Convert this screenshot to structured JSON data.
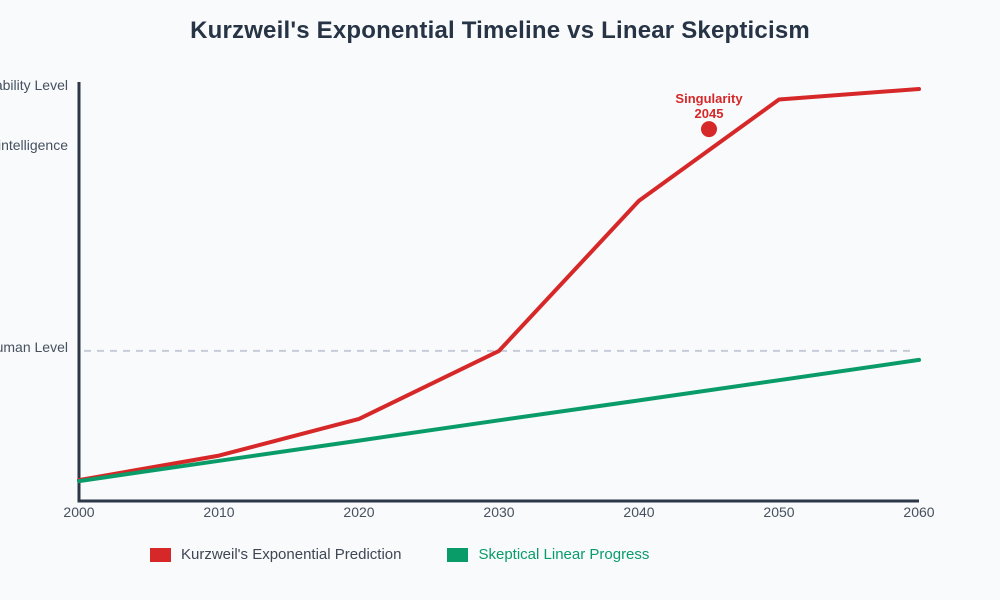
{
  "page": {
    "background": "#f8fafc"
  },
  "title": "Kurzweil's Exponential Timeline vs Linear Skepticism",
  "colors": {
    "title": "#263445",
    "axis": "#2d3748",
    "tick_text": "#46505e",
    "background": "#f8fafc",
    "red_series": "#d62828",
    "green_series": "#0a9c68",
    "dashed_reference": "#c6ccd8",
    "legend_text_primary": "#3f4654"
  },
  "chart_data": {
    "type": "line",
    "title": "Kurzweil's Exponential Timeline vs Linear Skepticism",
    "xlabel": "",
    "ylabel": "Capability Level",
    "xlim": [
      2000,
      2060
    ],
    "ylim": [
      0,
      120
    ],
    "grid": false,
    "legend_position": "bottom",
    "x": [
      2000,
      2010,
      2020,
      2030,
      2040,
      2050,
      2060
    ],
    "x_ticks": [
      "2000",
      "2010",
      "2020",
      "2030",
      "2040",
      "2050",
      "2060"
    ],
    "series": [
      {
        "name": "Kurzweil's Exponential Prediction",
        "color": "#d62828",
        "label_color": "#3f4654",
        "values": [
          6,
          13,
          23.5,
          43,
          86,
          115,
          118
        ]
      },
      {
        "name": "Skeptical Linear Progress",
        "color": "#0a9c68",
        "label_color": "#0a9c68",
        "values": [
          5.7,
          11.5,
          17.3,
          23.1,
          28.8,
          34.6,
          40.4
        ]
      }
    ],
    "y_axis_title": "Capability Level",
    "y_tick_labels": [
      {
        "label": "Superintelligence",
        "value": 102
      },
      {
        "label": "Human Level",
        "value": 43
      }
    ],
    "reference_line": {
      "label": "Human Level",
      "value": 43,
      "style": "dashed",
      "color": "#c6ccd8"
    },
    "annotation": {
      "line1": "Singularity",
      "line2": "2045",
      "x": 2045,
      "y": 106.5,
      "marker": "circle",
      "color": "#d62828"
    }
  }
}
